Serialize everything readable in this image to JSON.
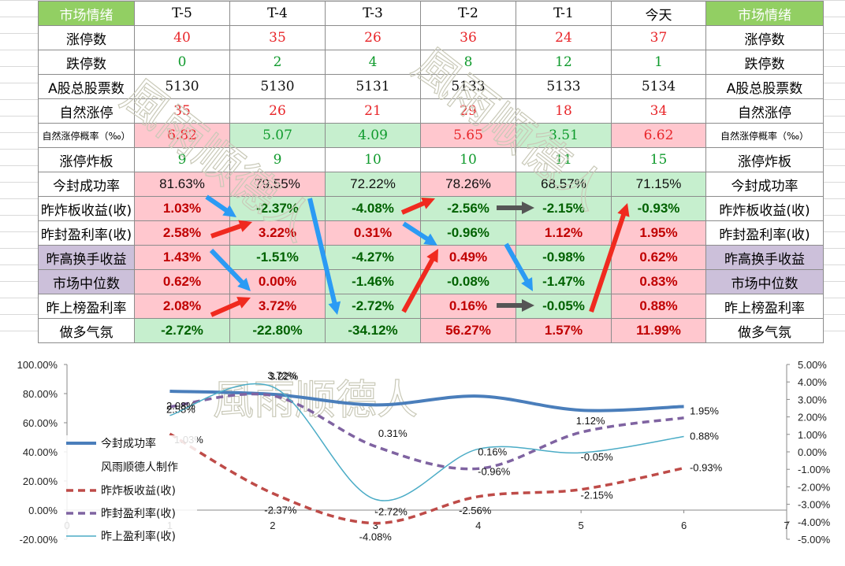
{
  "table": {
    "header": {
      "label": "市场情绪",
      "label_right": "市场情绪",
      "days": [
        "T-5",
        "T-4",
        "T-3",
        "T-2",
        "T-1",
        "今天"
      ]
    },
    "rows": [
      {
        "label": "涨停数",
        "values": [
          "40",
          "35",
          "26",
          "36",
          "24",
          "37"
        ]
      },
      {
        "label": "跌停数",
        "values": [
          "0",
          "2",
          "4",
          "8",
          "12",
          "1"
        ]
      },
      {
        "label": "A股总股票数",
        "values": [
          "5130",
          "5130",
          "5131",
          "5133",
          "5133",
          "5134"
        ]
      },
      {
        "label": "自然涨停",
        "values": [
          "35",
          "26",
          "21",
          "29",
          "18",
          "34"
        ]
      },
      {
        "label": "自然涨停概率（‰）",
        "values": [
          "6.82",
          "5.07",
          "4.09",
          "5.65",
          "3.51",
          "6.62"
        ]
      },
      {
        "label": "涨停炸板",
        "values": [
          "9",
          "9",
          "10",
          "10",
          "11",
          "15"
        ]
      },
      {
        "label": "今封成功率",
        "values": [
          "81.63%",
          "79.55%",
          "72.22%",
          "78.26%",
          "68.57%",
          "71.15%"
        ]
      },
      {
        "label": "昨炸板收益(收)",
        "values": [
          "1.03%",
          "-2.37%",
          "-4.08%",
          "-2.56%",
          "-2.15%",
          "-0.93%"
        ]
      },
      {
        "label": "昨封盈利率(收)",
        "values": [
          "2.58%",
          "3.22%",
          "0.31%",
          "-0.96%",
          "1.12%",
          "1.95%"
        ]
      },
      {
        "label": "昨高换手收益",
        "values": [
          "1.43%",
          "-1.51%",
          "-4.27%",
          "0.49%",
          "-0.98%",
          "0.62%"
        ]
      },
      {
        "label": "市场中位数",
        "values": [
          "0.62%",
          "0.00%",
          "-1.46%",
          "-0.08%",
          "-1.47%",
          "0.83%"
        ]
      },
      {
        "label": "昨上榜盈利率",
        "values": [
          "2.08%",
          "3.72%",
          "-2.72%",
          "0.16%",
          "-0.05%",
          "0.88%"
        ]
      },
      {
        "label": "做多气氛",
        "values": [
          "-2.72%",
          "-22.80%",
          "-34.12%",
          "56.27%",
          "1.57%",
          "11.99%"
        ]
      }
    ]
  },
  "watermark": "風雨顺德人",
  "colors": {
    "header_green": "#92cf63",
    "pos_bg": "#ffc7ce",
    "neg_bg": "#c6efce",
    "purple_bg": "#ccc0da",
    "arrow_blue": "#2b9bf4",
    "arrow_red": "#f02a1f",
    "arrow_gray": "#555555"
  },
  "chart_data": {
    "type": "line",
    "x": [
      1,
      2,
      3,
      4,
      5,
      6
    ],
    "xlim": [
      0,
      7
    ],
    "xticks": [
      "0",
      "1",
      "2",
      "3",
      "4",
      "5",
      "6",
      "7"
    ],
    "ylim_left": [
      -20,
      100
    ],
    "yticks_left": [
      "100.00%",
      "80.00%",
      "60.00%",
      "40.00%",
      "20.00%",
      "0.00%",
      "-20.00%"
    ],
    "ylim_right": [
      -5,
      5
    ],
    "yticks_right": [
      "5.00%",
      "4.00%",
      "3.00%",
      "2.00%",
      "1.00%",
      "0.00%",
      "-1.00%",
      "-2.00%",
      "-3.00%",
      "-4.00%",
      "-5.00%"
    ],
    "legend_placement": "left",
    "legend_extra": "风雨顺德人制作",
    "series": [
      {
        "name": "今封成功率",
        "axis": "left",
        "style": "solid",
        "color": "#4a7ebb",
        "values": [
          81.63,
          79.55,
          72.22,
          78.26,
          68.57,
          71.15
        ]
      },
      {
        "name": "昨炸板收益(收)",
        "axis": "right",
        "style": "dashed",
        "color": "#be4b48",
        "values": [
          1.03,
          -2.37,
          -4.08,
          -2.56,
          -2.15,
          -0.93
        ],
        "labels": [
          "1.03%",
          "-2.37%",
          "-4.08%",
          "-2.56%",
          "-2.15%",
          "-0.93%"
        ]
      },
      {
        "name": "昨封盈利率(收)",
        "axis": "right",
        "style": "dashed",
        "color": "#7f63a1",
        "values": [
          2.58,
          3.22,
          0.31,
          -0.96,
          1.12,
          1.95
        ],
        "labels": [
          "2.58%",
          "3.22%",
          "0.31%",
          "-0.96%",
          "1.12%",
          "1.95%"
        ]
      },
      {
        "name": "昨上盈利率(收)",
        "axis": "right",
        "style": "thin",
        "color": "#4bacc6",
        "values": [
          2.08,
          3.72,
          -2.72,
          0.16,
          -0.05,
          0.88
        ],
        "labels": [
          "2.08%",
          "3.72%",
          "-2.72%",
          "0.16%",
          "-0.05%",
          "0.88%"
        ]
      }
    ]
  }
}
